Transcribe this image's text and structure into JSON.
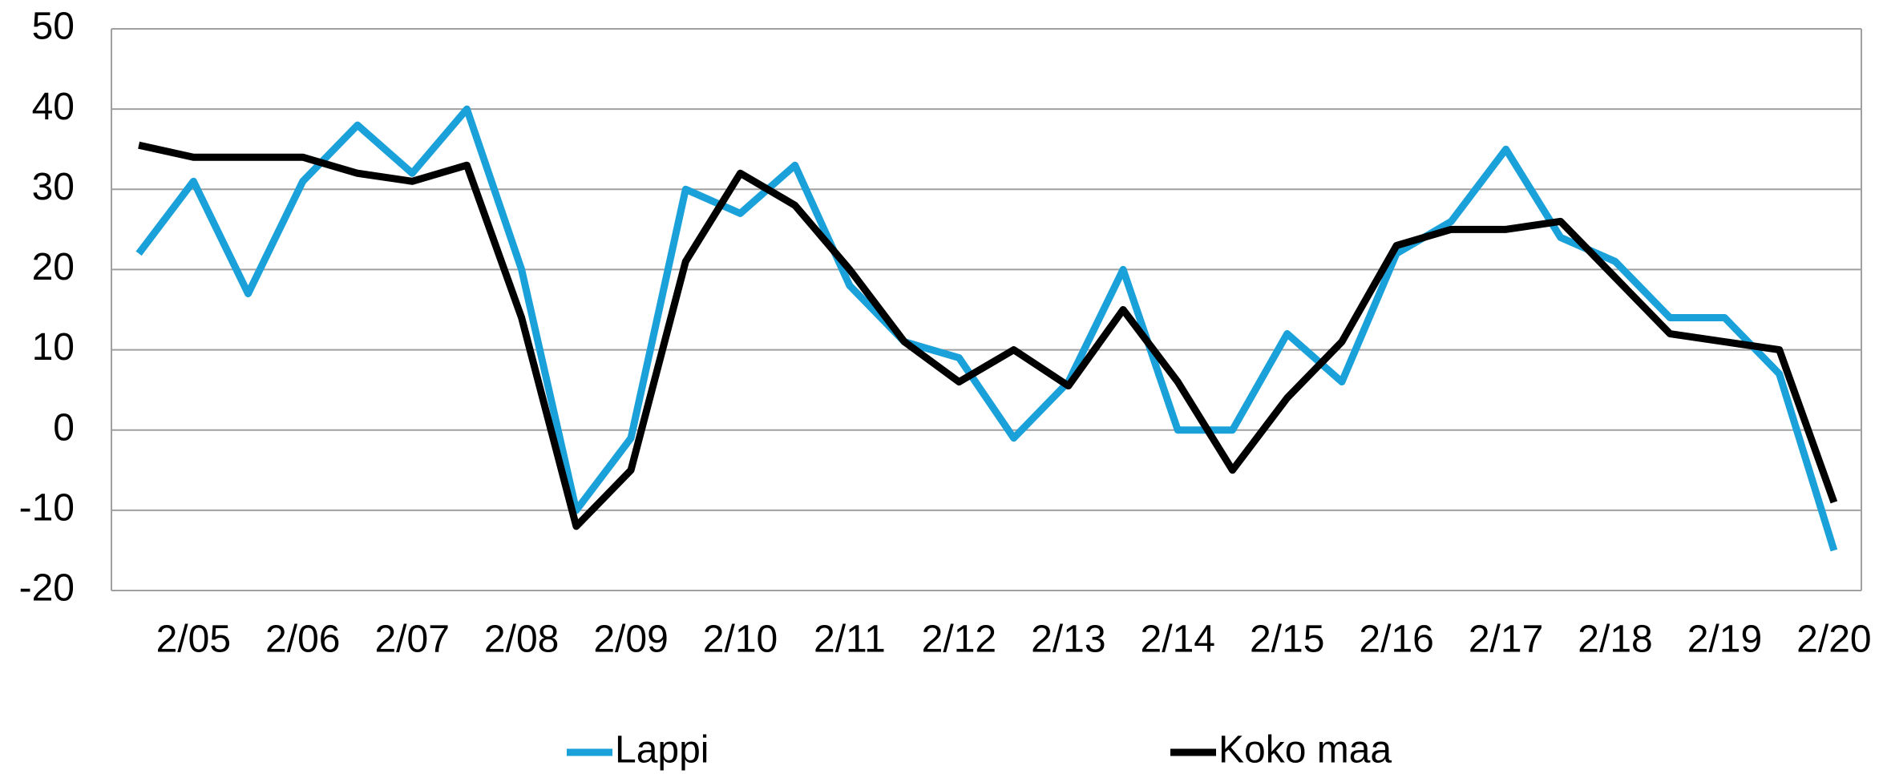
{
  "chart_data": {
    "type": "line",
    "categories": [
      null,
      "2/05",
      null,
      "2/06",
      null,
      "2/07",
      null,
      "2/08",
      null,
      "2/09",
      null,
      "2/10",
      null,
      "2/11",
      null,
      "2/12",
      null,
      "2/13",
      null,
      "2/14",
      null,
      "2/15",
      null,
      "2/16",
      null,
      "2/17",
      null,
      "2/18",
      null,
      "2/19",
      null,
      "2/20"
    ],
    "series": [
      {
        "name": "Lappi",
        "color": "#1ba1d9",
        "values": [
          22,
          31,
          17,
          31,
          38,
          32,
          40,
          20,
          -10,
          -1,
          30,
          27,
          33,
          18,
          11,
          9,
          -1,
          6,
          20,
          0,
          0,
          12,
          6,
          22,
          26,
          35,
          24,
          21,
          14,
          14,
          7,
          -15
        ]
      },
      {
        "name": "Koko maa",
        "color": "#000000",
        "values": [
          35.5,
          34,
          34,
          34,
          32,
          31,
          33,
          14,
          -12,
          -5,
          21,
          32,
          28,
          20,
          11,
          6,
          10,
          5.5,
          15,
          6,
          -5,
          4,
          11,
          23,
          25,
          25,
          26,
          19,
          12,
          11,
          10,
          -9
        ]
      }
    ],
    "ylim": [
      -20,
      50
    ],
    "yticks": [
      -20,
      -10,
      0,
      10,
      20,
      30,
      40,
      50
    ],
    "grid": true,
    "legend": "bottom"
  }
}
